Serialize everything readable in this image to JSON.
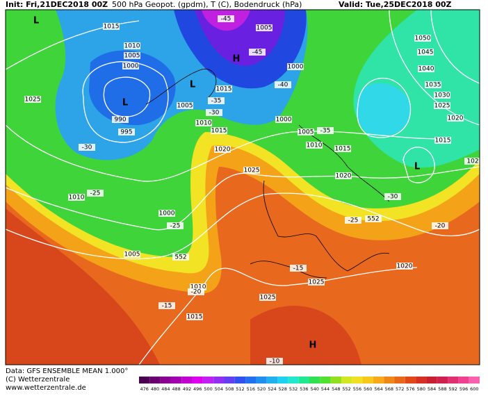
{
  "header": {
    "init": "Init: Fri,21DEC2018 00Z",
    "title": "500 hPa Geopot. (gpdm), T (C), Bodendruck (hPa)",
    "valid": "Valid: Tue,25DEC2018 00Z"
  },
  "map": {
    "labels": [
      "L",
      "L",
      "L",
      "L",
      "H",
      "H",
      "1015",
      "1010",
      "1005",
      "1000",
      "1025",
      "990",
      "995",
      "1005",
      "1010",
      "1015",
      "1020",
      "1015",
      "1005",
      "1000",
      "1000",
      "1005",
      "1010",
      "1015",
      "1020",
      "1025",
      "1050",
      "1045",
      "1040",
      "1035",
      "1030",
      "1025",
      "1020",
      "1015",
      "102",
      "1010",
      "1000",
      "1005",
      "1010",
      "1015",
      "1025",
      "1025",
      "1020",
      "-45",
      "-45",
      "-40",
      "-35",
      "-30",
      "-35",
      "-30",
      "-25",
      "-25",
      "-30",
      "-25",
      "-20",
      "-15",
      "-20",
      "-15",
      "-10",
      "552",
      "552"
    ]
  },
  "footer": {
    "source": "Data: GFS ENSEMBLE MEAN 1.000°",
    "copyright": "(C) Wetterzentrale",
    "url": "www.wetterzentrale.de"
  },
  "legend": {
    "ticks": [
      476,
      480,
      484,
      488,
      492,
      496,
      500,
      504,
      508,
      512,
      516,
      520,
      524,
      528,
      532,
      536,
      540,
      544,
      548,
      552,
      556,
      560,
      564,
      568,
      572,
      576,
      580,
      584,
      588,
      592,
      596,
      600
    ]
  }
}
